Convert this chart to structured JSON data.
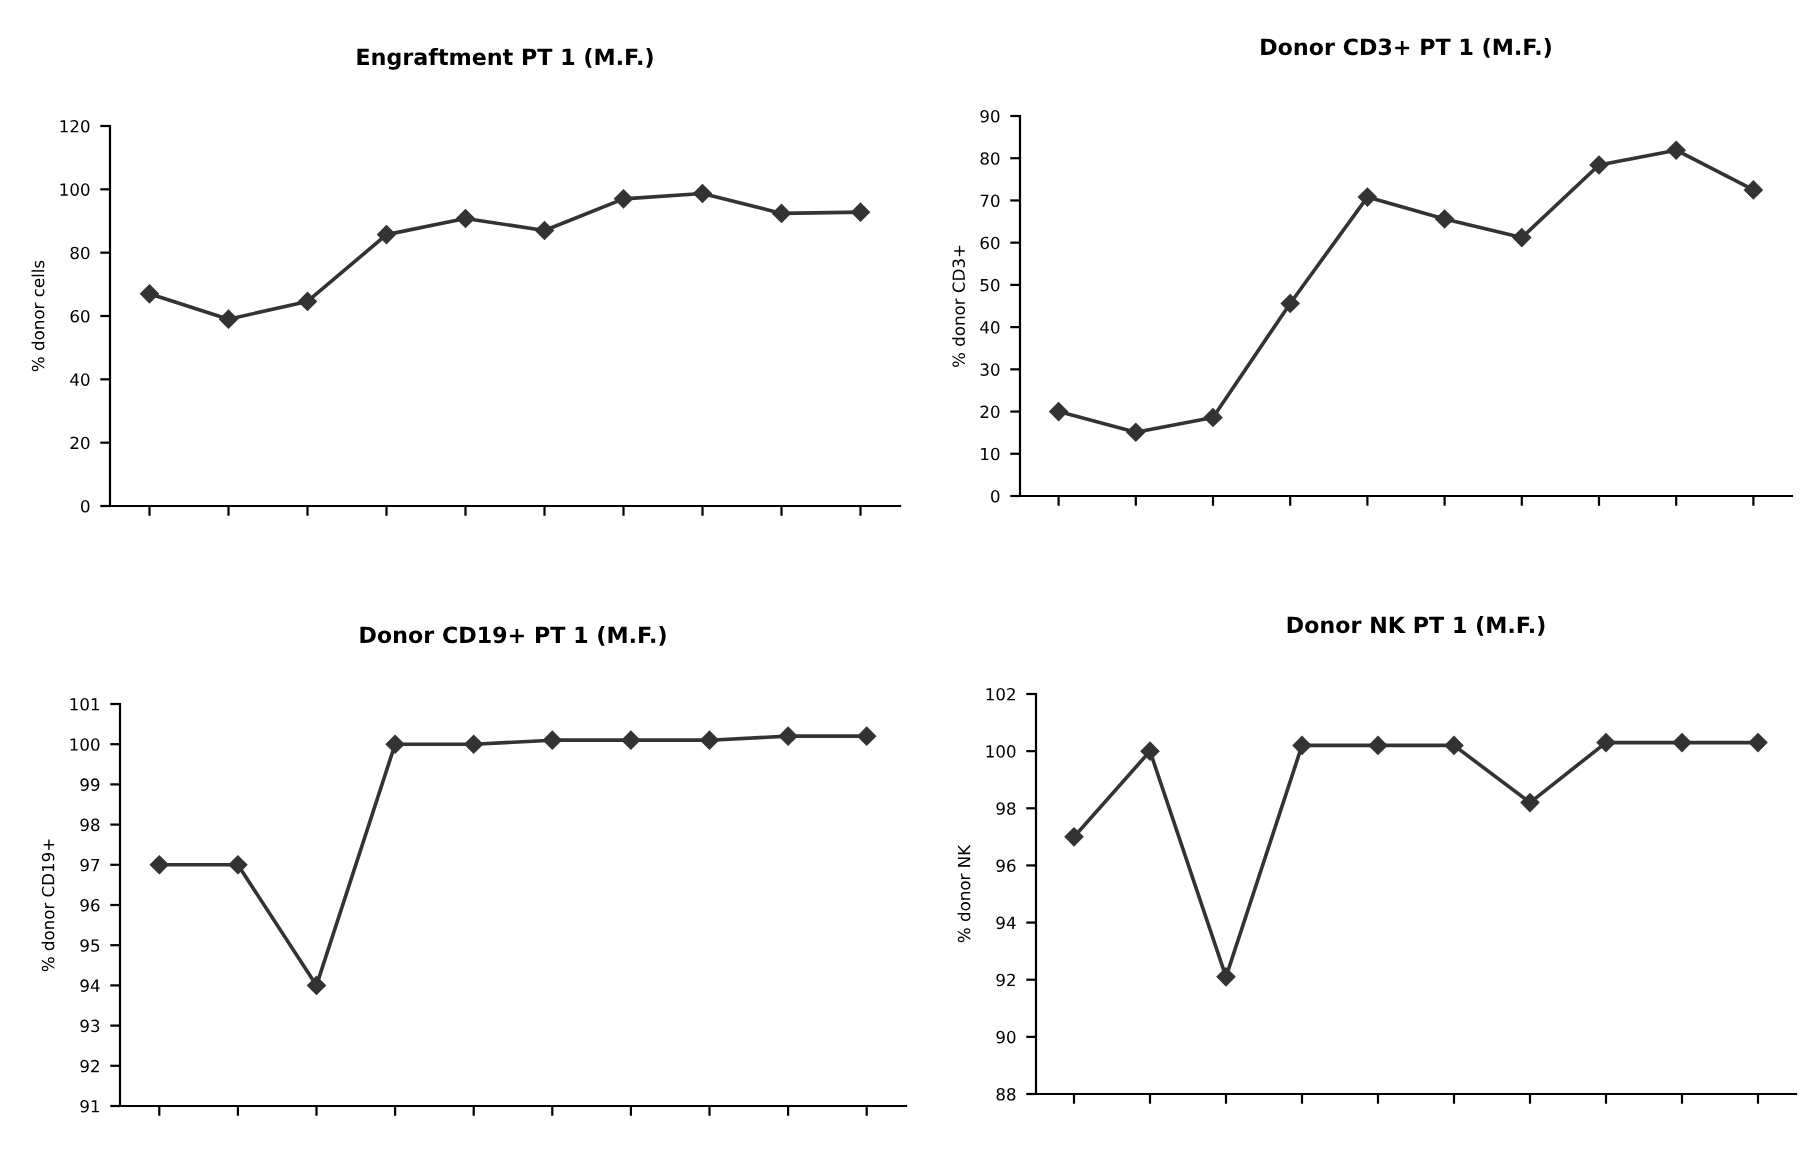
{
  "chart_data": [
    {
      "type": "line",
      "title": "Engraftment PT 1 (M.F.)",
      "ylabel": "% donor cells",
      "categories": [
        null,
        null,
        null,
        null,
        null,
        null,
        null,
        null,
        null,
        null
      ],
      "series": [
        {
          "color": "#333333",
          "values": [
            67,
            59,
            64.6,
            85.7,
            90.8,
            87,
            97,
            98.7,
            92.4,
            92.8
          ]
        }
      ],
      "ylim": [
        0,
        120
      ],
      "yticks": [
        0,
        20,
        40,
        60,
        80,
        100,
        120
      ],
      "marker": "diamond",
      "grid": false,
      "legend": false
    },
    {
      "type": "line",
      "title": "Donor CD3+ PT 1 (M.F.)",
      "ylabel": "% donor CD3+",
      "categories": [
        null,
        null,
        null,
        null,
        null,
        null,
        null,
        null,
        null,
        null
      ],
      "series": [
        {
          "color": "#333333",
          "values": [
            20,
            15.1,
            18.6,
            45.6,
            70.8,
            65.6,
            61.2,
            78.4,
            81.9,
            72.5
          ]
        }
      ],
      "ylim": [
        0,
        90
      ],
      "yticks": [
        0,
        10,
        20,
        30,
        40,
        50,
        60,
        70,
        80,
        90
      ],
      "marker": "diamond",
      "grid": false,
      "legend": false
    },
    {
      "type": "line",
      "title": "Donor CD19+ PT 1 (M.F.)",
      "ylabel": "% donor CD19+",
      "categories": [
        null,
        null,
        null,
        null,
        null,
        null,
        null,
        null,
        null,
        null
      ],
      "series": [
        {
          "color": "#333333",
          "values": [
            97,
            97,
            94,
            100,
            100,
            100.1,
            100.1,
            100.1,
            100.2,
            100.2
          ]
        }
      ],
      "ylim": [
        91,
        101
      ],
      "yticks": [
        91,
        92,
        93,
        94,
        95,
        96,
        97,
        98,
        99,
        100,
        101
      ],
      "marker": "diamond",
      "grid": false,
      "legend": false
    },
    {
      "type": "line",
      "title": "Donor NK PT 1 (M.F.)",
      "ylabel": "% donor NK",
      "categories": [
        null,
        null,
        null,
        null,
        null,
        null,
        null,
        null,
        null,
        null
      ],
      "series": [
        {
          "color": "#333333",
          "values": [
            97,
            100,
            92.1,
            100.2,
            100.2,
            100.2,
            98.2,
            100.3,
            100.3,
            100.3
          ]
        }
      ],
      "ylim": [
        88,
        102
      ],
      "yticks": [
        88,
        90,
        92,
        94,
        96,
        98,
        100,
        102
      ],
      "marker": "diamond",
      "grid": false,
      "legend": false
    }
  ]
}
